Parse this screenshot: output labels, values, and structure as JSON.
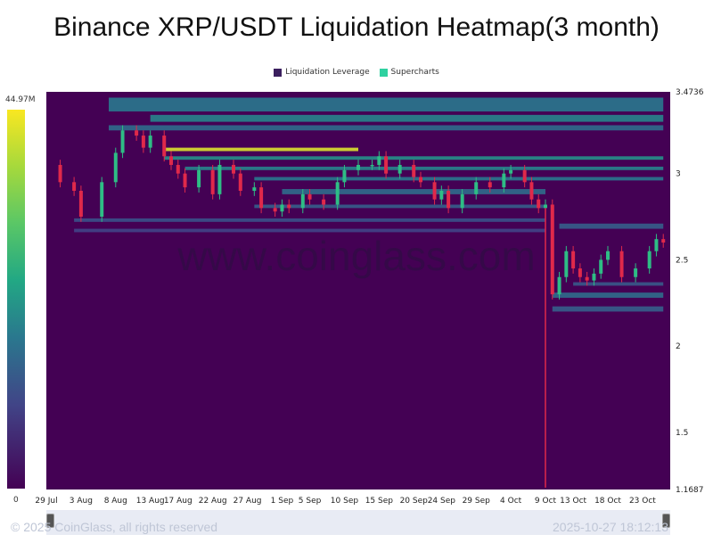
{
  "title": "Binance XRP/USDT Liquidation Heatmap(3 month)",
  "legend": [
    {
      "label": "Liquidation Leverage",
      "color": "#3b1f5e"
    },
    {
      "label": "Supercharts",
      "color": "#2fd1a0"
    }
  ],
  "colorbar": {
    "max_label": "44.97M",
    "min_label": "0"
  },
  "watermark": "www.coinglass.com",
  "footer": {
    "copyright": "© 2025 CoinGlass, all rights reserved",
    "timestamp": "2025-10-27 18:12:13"
  },
  "chart_data": {
    "type": "heatmap",
    "title": "Binance XRP/USDT Liquidation Heatmap(3 month)",
    "ylim": [
      1.1687,
      3.4736
    ],
    "y_tick_labels": [
      "3.4736",
      "3",
      "2.5",
      "2",
      "1.5",
      "1.1687"
    ],
    "y_tick_values": [
      3.4736,
      3.0,
      2.5,
      2.0,
      1.5,
      1.1687
    ],
    "x_tick_labels": [
      "29 Jul",
      "3 Aug",
      "8 Aug",
      "13 Aug",
      "17 Aug",
      "22 Aug",
      "27 Aug",
      "1 Sep",
      "5 Sep",
      "10 Sep",
      "15 Sep",
      "20 Sep",
      "24 Sep",
      "29 Sep",
      "4 Oct",
      "9 Oct",
      "13 Oct",
      "18 Oct",
      "23 Oct"
    ],
    "x_tick_days": [
      0,
      5,
      10,
      15,
      19,
      24,
      29,
      34,
      38,
      43,
      48,
      53,
      57,
      62,
      67,
      72,
      76,
      81,
      86
    ],
    "colorbar_range": [
      0,
      44970000
    ],
    "price": {
      "days": [
        0,
        2,
        4,
        5,
        8,
        10,
        11,
        13,
        14,
        15,
        17,
        18,
        19,
        20,
        22,
        24,
        25,
        27,
        28,
        30,
        31,
        33,
        34,
        35,
        37,
        38,
        40,
        42,
        43,
        45,
        47,
        48,
        49,
        51,
        53,
        54,
        56,
        57,
        58,
        60,
        62,
        64,
        66,
        67,
        69,
        70,
        71,
        72,
        73,
        74,
        75,
        76,
        77,
        78,
        79,
        80,
        81,
        83,
        85,
        87,
        88,
        89
      ],
      "values": [
        3.05,
        2.95,
        2.9,
        2.75,
        2.95,
        3.12,
        3.25,
        3.22,
        3.15,
        3.22,
        3.1,
        3.05,
        3.0,
        2.92,
        3.02,
        2.88,
        3.05,
        3.0,
        2.9,
        2.92,
        2.8,
        2.78,
        2.82,
        2.8,
        2.88,
        2.85,
        2.82,
        2.95,
        3.02,
        3.05,
        3.05,
        3.1,
        3.0,
        3.05,
        2.98,
        2.95,
        2.85,
        2.9,
        2.8,
        2.88,
        2.95,
        2.92,
        3.0,
        3.02,
        2.95,
        2.85,
        2.8,
        2.82,
        2.3,
        2.4,
        2.55,
        2.45,
        2.4,
        2.38,
        2.42,
        2.5,
        2.55,
        2.4,
        2.45,
        2.55,
        2.62,
        2.6
      ],
      "wick_low": {
        "day": 72,
        "value": 1.18
      }
    },
    "bands": [
      {
        "day_start": 9,
        "day_end": 89,
        "y_low": 3.36,
        "y_high": 3.44,
        "intensity": 0.4
      },
      {
        "day_start": 15,
        "day_end": 89,
        "y_low": 3.3,
        "y_high": 3.34,
        "intensity": 0.45
      },
      {
        "day_start": 9,
        "day_end": 89,
        "y_low": 3.25,
        "y_high": 3.28,
        "intensity": 0.35
      },
      {
        "day_start": 17,
        "day_end": 45,
        "y_low": 3.13,
        "y_high": 3.15,
        "intensity": 0.95
      },
      {
        "day_start": 17,
        "day_end": 89,
        "y_low": 3.08,
        "y_high": 3.1,
        "intensity": 0.5
      },
      {
        "day_start": 20,
        "day_end": 89,
        "y_low": 3.02,
        "y_high": 3.04,
        "intensity": 0.45
      },
      {
        "day_start": 30,
        "day_end": 89,
        "y_low": 2.96,
        "y_high": 2.98,
        "intensity": 0.4
      },
      {
        "day_start": 34,
        "day_end": 72,
        "y_low": 2.88,
        "y_high": 2.91,
        "intensity": 0.35
      },
      {
        "day_start": 30,
        "day_end": 72,
        "y_low": 2.8,
        "y_high": 2.82,
        "intensity": 0.3
      },
      {
        "day_start": 4,
        "day_end": 72,
        "y_low": 2.72,
        "y_high": 2.74,
        "intensity": 0.25
      },
      {
        "day_start": 4,
        "day_end": 72,
        "y_low": 2.66,
        "y_high": 2.68,
        "intensity": 0.2
      },
      {
        "day_start": 74,
        "day_end": 89,
        "y_low": 2.68,
        "y_high": 2.71,
        "intensity": 0.3
      },
      {
        "day_start": 73,
        "day_end": 89,
        "y_low": 2.28,
        "y_high": 2.31,
        "intensity": 0.35
      },
      {
        "day_start": 73,
        "day_end": 89,
        "y_low": 2.2,
        "y_high": 2.23,
        "intensity": 0.3
      },
      {
        "day_start": 76,
        "day_end": 89,
        "y_low": 2.35,
        "y_high": 2.37,
        "intensity": 0.28
      }
    ]
  }
}
